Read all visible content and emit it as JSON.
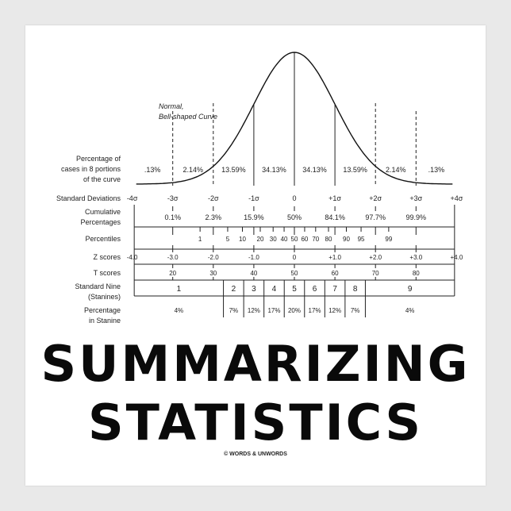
{
  "diagram": {
    "curve_label": [
      "Normal,",
      "Bell-shaped Curve"
    ],
    "row_labels": {
      "portions": [
        "Percentage of",
        "cases in 8 portions",
        "of the curve"
      ],
      "sd": "Standard Deviations",
      "cumulative": [
        "Cumulative",
        "Percentages"
      ],
      "percentiles": "Percentiles",
      "z": "Z scores",
      "t": "T scores",
      "stanines": [
        "Standard Nine",
        "(Stanines)"
      ],
      "stanine_pct": [
        "Percentage",
        "in Stanine"
      ]
    },
    "portions": [
      ".13%",
      "2.14%",
      "13.59%",
      "34.13%",
      "34.13%",
      "13.59%",
      "2.14%",
      ".13%"
    ],
    "sd_labels": [
      "-4σ",
      "-3σ",
      "-2σ",
      "-1σ",
      "0",
      "+1σ",
      "+2σ",
      "+3σ",
      "+4σ"
    ],
    "cumulative": [
      {
        "z": -3,
        "label": "0.1%"
      },
      {
        "z": -2,
        "label": "2.3%"
      },
      {
        "z": -1,
        "label": "15.9%"
      },
      {
        "z": 0,
        "label": "50%"
      },
      {
        "z": 1,
        "label": "84.1%"
      },
      {
        "z": 2,
        "label": "97.7%"
      },
      {
        "z": 3,
        "label": "99.9%"
      }
    ],
    "percentiles": [
      1,
      5,
      10,
      20,
      30,
      40,
      50,
      60,
      70,
      80,
      90,
      95,
      99
    ],
    "z_scores": [
      "-4.0",
      "-3.0",
      "-2.0",
      "-1.0",
      "0",
      "+1.0",
      "+2.0",
      "+3.0",
      "+4.0"
    ],
    "t_scores": [
      "20",
      "30",
      "40",
      "50",
      "60",
      "70",
      "80"
    ],
    "stanines": [
      "1",
      "2",
      "3",
      "4",
      "5",
      "6",
      "7",
      "8",
      "9"
    ],
    "stanine_pct": [
      "4%",
      "7%",
      "12%",
      "17%",
      "20%",
      "17%",
      "12%",
      "7%",
      "4%"
    ]
  },
  "title": {
    "line1": "SUMMARIZING",
    "line2": "STATISTICS"
  },
  "copyright": "© WORDS & UNWORDS"
}
